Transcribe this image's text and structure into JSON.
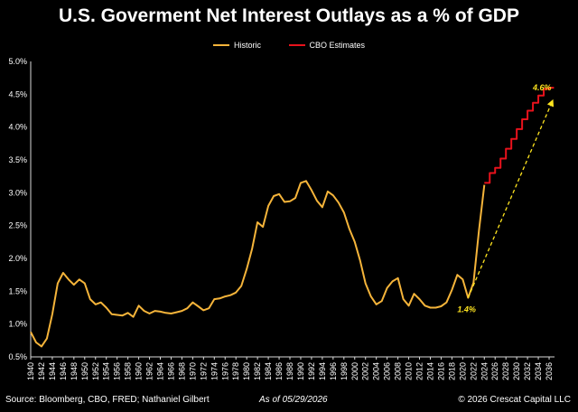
{
  "title": "U.S. Goverment Net Interest Outlays as a % of GDP",
  "footer": {
    "source": "Source: Bloomberg, CBO, FRED; Nathaniel Gilbert",
    "as_of": "As of 05/29/2026",
    "copyright": "© 2026 Crescat Capital LLC"
  },
  "chart_data": {
    "type": "line",
    "title": "U.S. Goverment Net Interest Outlays as a % of GDP",
    "xlabel": "",
    "ylabel": "",
    "xlim": [
      1940,
      2037
    ],
    "ylim": [
      0.5,
      5.0
    ],
    "y_ticks": [
      "0.5%",
      "1.0%",
      "1.5%",
      "2.0%",
      "2.5%",
      "3.0%",
      "3.5%",
      "4.0%",
      "4.5%",
      "5.0%"
    ],
    "x_ticks": [
      "1940",
      "1942",
      "1944",
      "1946",
      "1948",
      "1950",
      "1952",
      "1954",
      "1956",
      "1958",
      "1960",
      "1962",
      "1964",
      "1966",
      "1968",
      "1970",
      "1972",
      "1974",
      "1976",
      "1978",
      "1980",
      "1982",
      "1984",
      "1986",
      "1988",
      "1990",
      "1992",
      "1994",
      "1996",
      "1998",
      "2000",
      "2002",
      "2004",
      "2006",
      "2008",
      "2010",
      "2012",
      "2014",
      "2016",
      "2018",
      "2020",
      "2022",
      "2024",
      "2026",
      "2028",
      "2030",
      "2032",
      "2034",
      "2036"
    ],
    "grid": false,
    "legend_position": "top-center",
    "series": [
      {
        "name": "Historic",
        "color": "#F5B43A",
        "style": "line",
        "x": [
          1940,
          1941,
          1942,
          1943,
          1944,
          1945,
          1946,
          1947,
          1948,
          1949,
          1950,
          1951,
          1952,
          1953,
          1954,
          1955,
          1956,
          1957,
          1958,
          1959,
          1960,
          1961,
          1962,
          1963,
          1964,
          1965,
          1966,
          1967,
          1968,
          1969,
          1970,
          1971,
          1972,
          1973,
          1974,
          1975,
          1976,
          1977,
          1978,
          1979,
          1980,
          1981,
          1982,
          1983,
          1984,
          1985,
          1986,
          1987,
          1988,
          1989,
          1990,
          1991,
          1992,
          1993,
          1994,
          1995,
          1996,
          1997,
          1998,
          1999,
          2000,
          2001,
          2002,
          2003,
          2004,
          2005,
          2006,
          2007,
          2008,
          2009,
          2010,
          2011,
          2012,
          2013,
          2014,
          2015,
          2016,
          2017,
          2018,
          2019,
          2020,
          2021,
          2022,
          2023,
          2024
        ],
        "values": [
          0.88,
          0.72,
          0.66,
          0.78,
          1.15,
          1.62,
          1.78,
          1.68,
          1.6,
          1.68,
          1.62,
          1.38,
          1.3,
          1.33,
          1.25,
          1.15,
          1.14,
          1.13,
          1.17,
          1.11,
          1.28,
          1.2,
          1.16,
          1.2,
          1.19,
          1.17,
          1.16,
          1.18,
          1.2,
          1.24,
          1.33,
          1.27,
          1.21,
          1.24,
          1.38,
          1.39,
          1.42,
          1.44,
          1.48,
          1.58,
          1.84,
          2.15,
          2.55,
          2.48,
          2.8,
          2.95,
          2.98,
          2.86,
          2.87,
          2.92,
          3.15,
          3.18,
          3.04,
          2.88,
          2.78,
          3.02,
          2.96,
          2.85,
          2.7,
          2.45,
          2.25,
          1.97,
          1.62,
          1.42,
          1.3,
          1.35,
          1.55,
          1.65,
          1.7,
          1.38,
          1.28,
          1.46,
          1.38,
          1.28,
          1.25,
          1.25,
          1.27,
          1.33,
          1.52,
          1.75,
          1.68,
          1.4,
          1.63,
          2.42,
          3.12
        ]
      },
      {
        "name": "CBO Estimates",
        "color": "#E8121C",
        "style": "step",
        "x": [
          2024,
          2025,
          2026,
          2027,
          2028,
          2029,
          2030,
          2031,
          2032,
          2033,
          2034,
          2035,
          2036
        ],
        "values": [
          3.15,
          3.3,
          3.38,
          3.52,
          3.67,
          3.82,
          3.97,
          4.12,
          4.25,
          4.37,
          4.48,
          4.58,
          4.6
        ]
      }
    ],
    "annotations": [
      {
        "text": "4.6%",
        "x": 2037,
        "y": 4.6,
        "color": "#FFE51F"
      },
      {
        "text": "1.4%",
        "x": 2021,
        "y": 1.4,
        "color": "#FFE51F"
      }
    ],
    "trend_arrow": {
      "x": [
        2021,
        2037
      ],
      "y": [
        1.4,
        4.6
      ],
      "color": "#FFE51F",
      "dashed": true
    }
  }
}
